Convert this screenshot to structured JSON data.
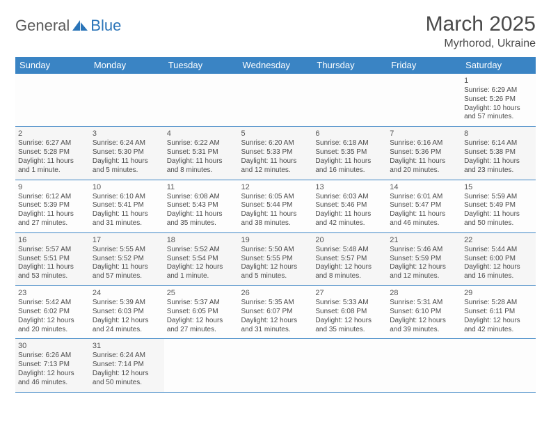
{
  "logo": {
    "part1": "General",
    "part2": "Blue"
  },
  "title": "March 2025",
  "location": "Myrhorod, Ukraine",
  "colors": {
    "header_bg": "#3a84c4",
    "header_text": "#ffffff",
    "border": "#3a84c4",
    "text": "#4a4a4a",
    "logo_gray": "#5a5a5a",
    "logo_blue": "#2a74b8"
  },
  "day_headers": [
    "Sunday",
    "Monday",
    "Tuesday",
    "Wednesday",
    "Thursday",
    "Friday",
    "Saturday"
  ],
  "weeks": [
    [
      null,
      null,
      null,
      null,
      null,
      null,
      {
        "n": "1",
        "sr": "Sunrise: 6:29 AM",
        "ss": "Sunset: 5:26 PM",
        "dl1": "Daylight: 10 hours",
        "dl2": "and 57 minutes."
      }
    ],
    [
      {
        "n": "2",
        "sr": "Sunrise: 6:27 AM",
        "ss": "Sunset: 5:28 PM",
        "dl1": "Daylight: 11 hours",
        "dl2": "and 1 minute."
      },
      {
        "n": "3",
        "sr": "Sunrise: 6:24 AM",
        "ss": "Sunset: 5:30 PM",
        "dl1": "Daylight: 11 hours",
        "dl2": "and 5 minutes."
      },
      {
        "n": "4",
        "sr": "Sunrise: 6:22 AM",
        "ss": "Sunset: 5:31 PM",
        "dl1": "Daylight: 11 hours",
        "dl2": "and 8 minutes."
      },
      {
        "n": "5",
        "sr": "Sunrise: 6:20 AM",
        "ss": "Sunset: 5:33 PM",
        "dl1": "Daylight: 11 hours",
        "dl2": "and 12 minutes."
      },
      {
        "n": "6",
        "sr": "Sunrise: 6:18 AM",
        "ss": "Sunset: 5:35 PM",
        "dl1": "Daylight: 11 hours",
        "dl2": "and 16 minutes."
      },
      {
        "n": "7",
        "sr": "Sunrise: 6:16 AM",
        "ss": "Sunset: 5:36 PM",
        "dl1": "Daylight: 11 hours",
        "dl2": "and 20 minutes."
      },
      {
        "n": "8",
        "sr": "Sunrise: 6:14 AM",
        "ss": "Sunset: 5:38 PM",
        "dl1": "Daylight: 11 hours",
        "dl2": "and 23 minutes."
      }
    ],
    [
      {
        "n": "9",
        "sr": "Sunrise: 6:12 AM",
        "ss": "Sunset: 5:39 PM",
        "dl1": "Daylight: 11 hours",
        "dl2": "and 27 minutes."
      },
      {
        "n": "10",
        "sr": "Sunrise: 6:10 AM",
        "ss": "Sunset: 5:41 PM",
        "dl1": "Daylight: 11 hours",
        "dl2": "and 31 minutes."
      },
      {
        "n": "11",
        "sr": "Sunrise: 6:08 AM",
        "ss": "Sunset: 5:43 PM",
        "dl1": "Daylight: 11 hours",
        "dl2": "and 35 minutes."
      },
      {
        "n": "12",
        "sr": "Sunrise: 6:05 AM",
        "ss": "Sunset: 5:44 PM",
        "dl1": "Daylight: 11 hours",
        "dl2": "and 38 minutes."
      },
      {
        "n": "13",
        "sr": "Sunrise: 6:03 AM",
        "ss": "Sunset: 5:46 PM",
        "dl1": "Daylight: 11 hours",
        "dl2": "and 42 minutes."
      },
      {
        "n": "14",
        "sr": "Sunrise: 6:01 AM",
        "ss": "Sunset: 5:47 PM",
        "dl1": "Daylight: 11 hours",
        "dl2": "and 46 minutes."
      },
      {
        "n": "15",
        "sr": "Sunrise: 5:59 AM",
        "ss": "Sunset: 5:49 PM",
        "dl1": "Daylight: 11 hours",
        "dl2": "and 50 minutes."
      }
    ],
    [
      {
        "n": "16",
        "sr": "Sunrise: 5:57 AM",
        "ss": "Sunset: 5:51 PM",
        "dl1": "Daylight: 11 hours",
        "dl2": "and 53 minutes."
      },
      {
        "n": "17",
        "sr": "Sunrise: 5:55 AM",
        "ss": "Sunset: 5:52 PM",
        "dl1": "Daylight: 11 hours",
        "dl2": "and 57 minutes."
      },
      {
        "n": "18",
        "sr": "Sunrise: 5:52 AM",
        "ss": "Sunset: 5:54 PM",
        "dl1": "Daylight: 12 hours",
        "dl2": "and 1 minute."
      },
      {
        "n": "19",
        "sr": "Sunrise: 5:50 AM",
        "ss": "Sunset: 5:55 PM",
        "dl1": "Daylight: 12 hours",
        "dl2": "and 5 minutes."
      },
      {
        "n": "20",
        "sr": "Sunrise: 5:48 AM",
        "ss": "Sunset: 5:57 PM",
        "dl1": "Daylight: 12 hours",
        "dl2": "and 8 minutes."
      },
      {
        "n": "21",
        "sr": "Sunrise: 5:46 AM",
        "ss": "Sunset: 5:59 PM",
        "dl1": "Daylight: 12 hours",
        "dl2": "and 12 minutes."
      },
      {
        "n": "22",
        "sr": "Sunrise: 5:44 AM",
        "ss": "Sunset: 6:00 PM",
        "dl1": "Daylight: 12 hours",
        "dl2": "and 16 minutes."
      }
    ],
    [
      {
        "n": "23",
        "sr": "Sunrise: 5:42 AM",
        "ss": "Sunset: 6:02 PM",
        "dl1": "Daylight: 12 hours",
        "dl2": "and 20 minutes."
      },
      {
        "n": "24",
        "sr": "Sunrise: 5:39 AM",
        "ss": "Sunset: 6:03 PM",
        "dl1": "Daylight: 12 hours",
        "dl2": "and 24 minutes."
      },
      {
        "n": "25",
        "sr": "Sunrise: 5:37 AM",
        "ss": "Sunset: 6:05 PM",
        "dl1": "Daylight: 12 hours",
        "dl2": "and 27 minutes."
      },
      {
        "n": "26",
        "sr": "Sunrise: 5:35 AM",
        "ss": "Sunset: 6:07 PM",
        "dl1": "Daylight: 12 hours",
        "dl2": "and 31 minutes."
      },
      {
        "n": "27",
        "sr": "Sunrise: 5:33 AM",
        "ss": "Sunset: 6:08 PM",
        "dl1": "Daylight: 12 hours",
        "dl2": "and 35 minutes."
      },
      {
        "n": "28",
        "sr": "Sunrise: 5:31 AM",
        "ss": "Sunset: 6:10 PM",
        "dl1": "Daylight: 12 hours",
        "dl2": "and 39 minutes."
      },
      {
        "n": "29",
        "sr": "Sunrise: 5:28 AM",
        "ss": "Sunset: 6:11 PM",
        "dl1": "Daylight: 12 hours",
        "dl2": "and 42 minutes."
      }
    ],
    [
      {
        "n": "30",
        "sr": "Sunrise: 6:26 AM",
        "ss": "Sunset: 7:13 PM",
        "dl1": "Daylight: 12 hours",
        "dl2": "and 46 minutes."
      },
      {
        "n": "31",
        "sr": "Sunrise: 6:24 AM",
        "ss": "Sunset: 7:14 PM",
        "dl1": "Daylight: 12 hours",
        "dl2": "and 50 minutes."
      },
      null,
      null,
      null,
      null,
      null
    ]
  ]
}
